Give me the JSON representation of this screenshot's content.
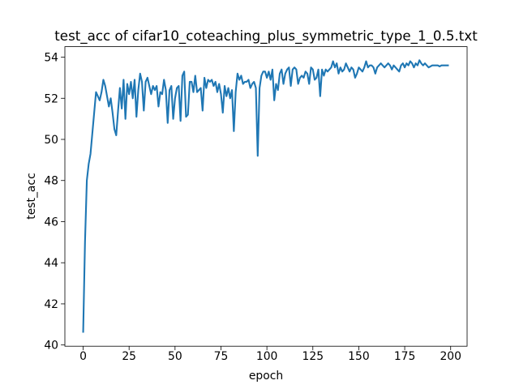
{
  "chart_data": {
    "type": "line",
    "title": "test_acc of cifar10_coteaching_plus_symmetric_type_1_0.5.txt",
    "x_label": "epoch",
    "y_label": "test_acc",
    "x": [
      0,
      1,
      2,
      3,
      4,
      5,
      6,
      7,
      8,
      9,
      10,
      11,
      12,
      13,
      14,
      15,
      16,
      17,
      18,
      19,
      20,
      21,
      22,
      23,
      24,
      25,
      26,
      27,
      28,
      29,
      30,
      31,
      32,
      33,
      34,
      35,
      36,
      37,
      38,
      39,
      40,
      41,
      42,
      43,
      44,
      45,
      46,
      47,
      48,
      49,
      50,
      51,
      52,
      53,
      54,
      55,
      56,
      57,
      58,
      59,
      60,
      61,
      62,
      63,
      64,
      65,
      66,
      67,
      68,
      69,
      70,
      71,
      72,
      73,
      74,
      75,
      76,
      77,
      78,
      79,
      80,
      81,
      82,
      83,
      84,
      85,
      86,
      87,
      88,
      89,
      90,
      91,
      92,
      93,
      94,
      95,
      96,
      97,
      98,
      99,
      100,
      101,
      102,
      103,
      104,
      105,
      106,
      107,
      108,
      109,
      110,
      111,
      112,
      113,
      114,
      115,
      116,
      117,
      118,
      119,
      120,
      121,
      122,
      123,
      124,
      125,
      126,
      127,
      128,
      129,
      130,
      131,
      132,
      133,
      134,
      135,
      136,
      137,
      138,
      139,
      140,
      141,
      142,
      143,
      144,
      145,
      146,
      147,
      148,
      149,
      150,
      151,
      152,
      153,
      154,
      155,
      156,
      157,
      158,
      159,
      160,
      161,
      162,
      163,
      164,
      165,
      166,
      167,
      168,
      169,
      170,
      171,
      172,
      173,
      174,
      175,
      176,
      177,
      178,
      179,
      180,
      181,
      182,
      183,
      184,
      185,
      186,
      187,
      188,
      189,
      190,
      191,
      192,
      193,
      194,
      195,
      196,
      197,
      198,
      199
    ],
    "series": [
      {
        "name": "test_acc",
        "color": "#1f77b4",
        "values": [
          40.6,
          45.0,
          48.0,
          48.8,
          49.3,
          50.3,
          51.3,
          52.3,
          52.1,
          51.9,
          52.3,
          52.9,
          52.6,
          52.1,
          51.6,
          52.0,
          51.3,
          50.5,
          50.2,
          51.4,
          52.5,
          51.5,
          52.9,
          51.0,
          52.7,
          52.2,
          52.8,
          52.0,
          52.9,
          51.1,
          52.4,
          53.2,
          52.8,
          51.4,
          52.8,
          53.0,
          52.6,
          52.2,
          52.6,
          52.4,
          52.6,
          51.6,
          52.3,
          52.2,
          52.9,
          52.4,
          50.8,
          52.4,
          52.6,
          51.0,
          52.0,
          52.5,
          52.6,
          50.9,
          53.1,
          53.3,
          51.1,
          51.2,
          52.8,
          52.8,
          52.3,
          53.1,
          52.3,
          52.4,
          52.5,
          51.4,
          53.0,
          52.5,
          52.9,
          52.8,
          52.9,
          52.6,
          52.8,
          52.3,
          52.7,
          52.2,
          51.3,
          52.6,
          52.1,
          52.5,
          52.0,
          52.4,
          50.4,
          52.3,
          53.2,
          52.9,
          53.1,
          52.7,
          52.8,
          52.8,
          52.9,
          52.5,
          52.7,
          52.8,
          52.5,
          49.2,
          52.5,
          53.1,
          53.3,
          53.3,
          53.0,
          53.3,
          52.9,
          53.4,
          51.9,
          52.7,
          52.4,
          53.2,
          53.4,
          52.7,
          53.2,
          53.4,
          53.5,
          52.6,
          53.4,
          53.5,
          53.4,
          52.7,
          53.0,
          53.1,
          53.0,
          53.3,
          53.2,
          52.7,
          53.5,
          53.4,
          52.9,
          53.0,
          53.4,
          52.1,
          53.4,
          53.1,
          53.4,
          53.3,
          53.4,
          53.5,
          53.8,
          53.5,
          53.7,
          53.2,
          53.5,
          53.3,
          53.4,
          53.7,
          53.5,
          53.3,
          53.5,
          53.4,
          53.0,
          53.2,
          53.5,
          53.4,
          53.3,
          53.5,
          53.8,
          53.5,
          53.6,
          53.6,
          53.5,
          53.2,
          53.5,
          53.6,
          53.7,
          53.6,
          53.5,
          53.6,
          53.7,
          53.6,
          53.4,
          53.6,
          53.5,
          53.4,
          53.3,
          53.6,
          53.7,
          53.5,
          53.7,
          53.6,
          53.8,
          53.7,
          53.5,
          53.7,
          53.6,
          53.85,
          53.7,
          53.6,
          53.7,
          53.6,
          53.5,
          53.55,
          53.6,
          53.6,
          53.6,
          53.6,
          53.55,
          53.6,
          53.6,
          53.6,
          53.6,
          53.6
        ]
      }
    ],
    "xlim": [
      -9.95,
      208.95
    ],
    "ylim": [
      39.94,
      54.51
    ],
    "xticks": [
      0,
      25,
      50,
      75,
      100,
      125,
      150,
      175,
      200
    ],
    "yticks": [
      40,
      42,
      44,
      46,
      48,
      50,
      52,
      54
    ]
  }
}
